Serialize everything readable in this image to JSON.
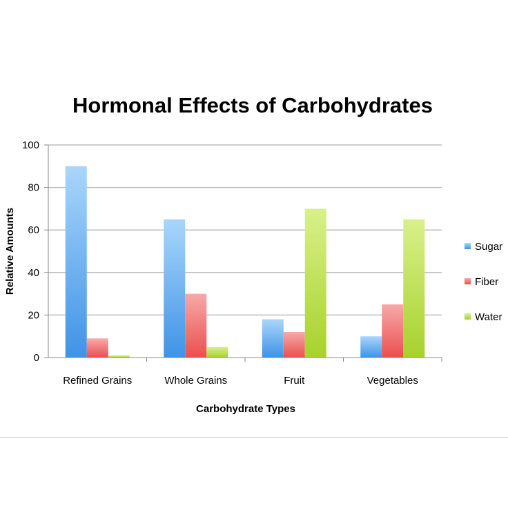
{
  "chart_data": {
    "type": "bar",
    "title": "Hormonal Effects of Carbohydrates",
    "xlabel": "Carbohydrate Types",
    "ylabel": "Relative Amounts",
    "categories": [
      "Refined Grains",
      "Whole Grains",
      "Fruit",
      "Vegetables"
    ],
    "series": [
      {
        "name": "Sugar",
        "values": [
          90,
          65,
          18,
          10
        ],
        "color": "#5aa7ee"
      },
      {
        "name": "Fiber",
        "values": [
          9,
          30,
          12,
          25
        ],
        "color": "#ef5b5b"
      },
      {
        "name": "Water",
        "values": [
          1,
          5,
          70,
          65
        ],
        "color": "#bfe34a"
      }
    ],
    "ylim": [
      0,
      100
    ],
    "yticks": [
      "0",
      "20",
      "40",
      "60",
      "80",
      "100"
    ],
    "grid": true,
    "legend_position": "right"
  }
}
